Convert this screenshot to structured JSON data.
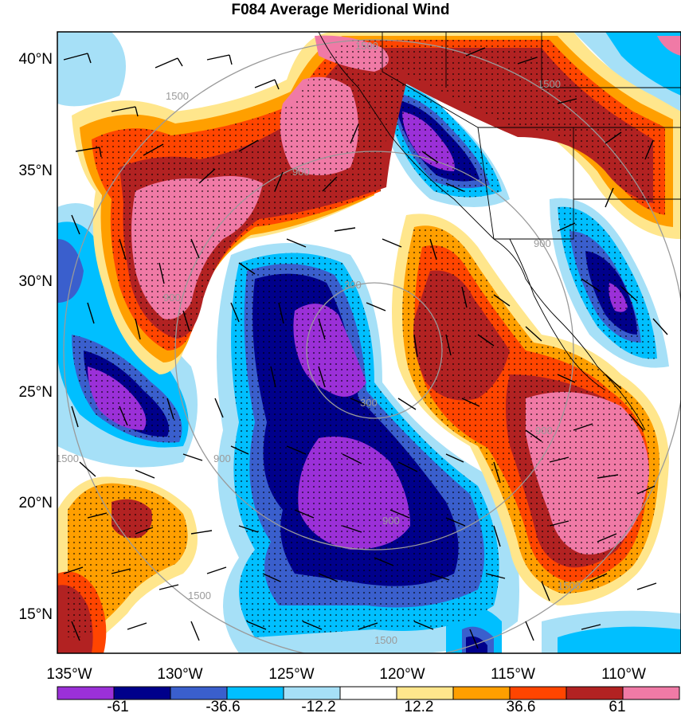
{
  "title": "F084 Average Meridional Wind",
  "map": {
    "lat_labels": [
      "40°N",
      "35°N",
      "30°N",
      "25°N",
      "20°N",
      "15°N"
    ],
    "lon_labels": [
      "135°W",
      "130°W",
      "125°W",
      "120°W",
      "115°W",
      "110°W"
    ],
    "ring_labels": [
      "300",
      "900",
      "1500"
    ]
  },
  "colorbar": {
    "colors": [
      "#9b30d8",
      "#00008b",
      "#3a5fcd",
      "#00bfff",
      "#a6e0f7",
      "#ffffff",
      "#ffe68c",
      "#ff9f00",
      "#ff4500",
      "#b22222",
      "#f07aa6"
    ],
    "labels": [
      "-61",
      "-36.6",
      "-12.2",
      "12.2",
      "36.6",
      "61"
    ]
  },
  "colors": {
    "frame": "#000000",
    "ring": "#9a9a9a",
    "coast": "#000000"
  }
}
